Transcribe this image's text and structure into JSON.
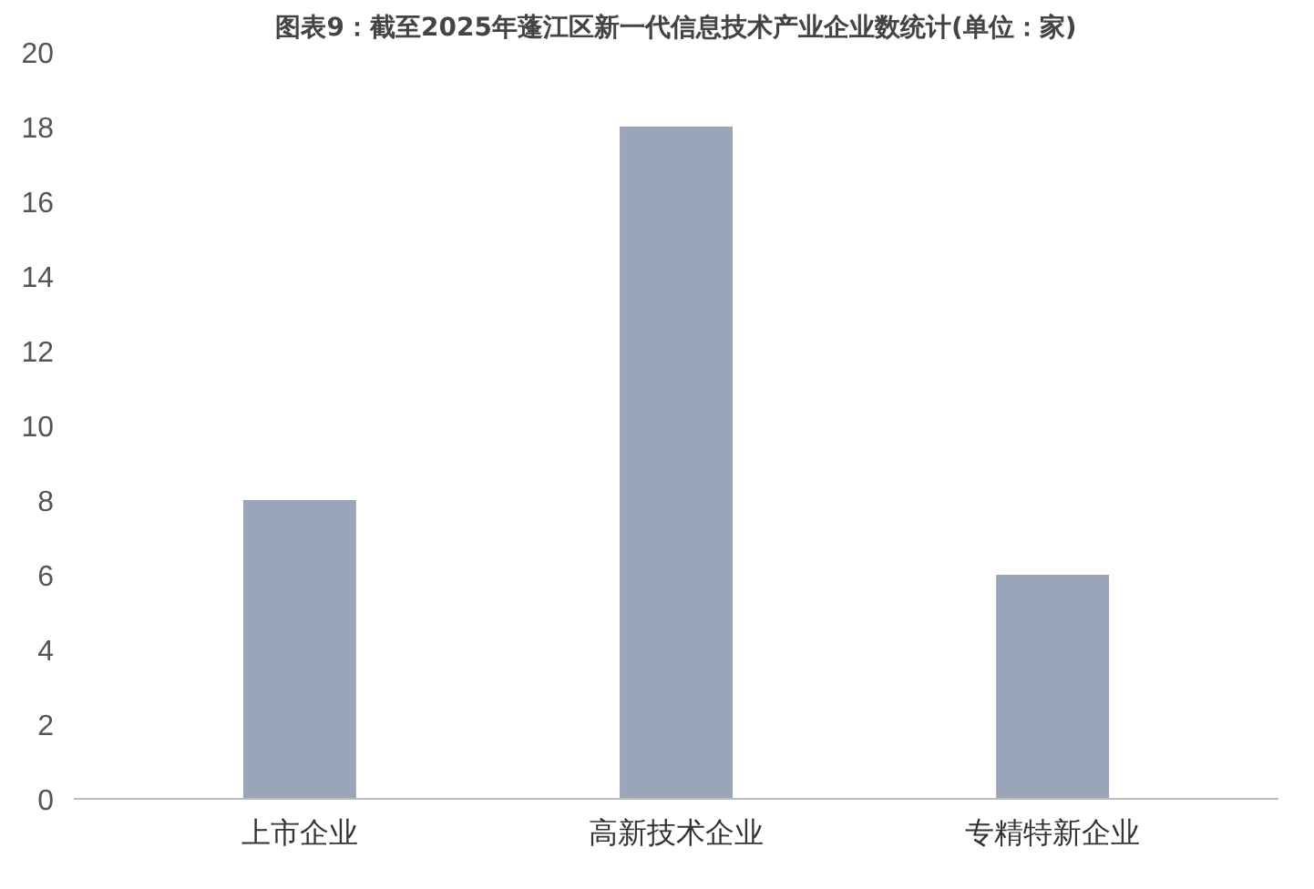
{
  "chart_data": {
    "type": "bar",
    "title": "图表9：截至2025年蓬江区新一代信息技术产业企业数统计(单位：家)",
    "categories": [
      "上市企业",
      "高新技术企业",
      "专精特新企业"
    ],
    "values": [
      8,
      18,
      6
    ],
    "color": "#9aa5ba",
    "ylim": [
      0,
      20
    ],
    "yticks": [
      0,
      2,
      4,
      6,
      8,
      10,
      12,
      14,
      16,
      18,
      20
    ],
    "grid": false
  }
}
